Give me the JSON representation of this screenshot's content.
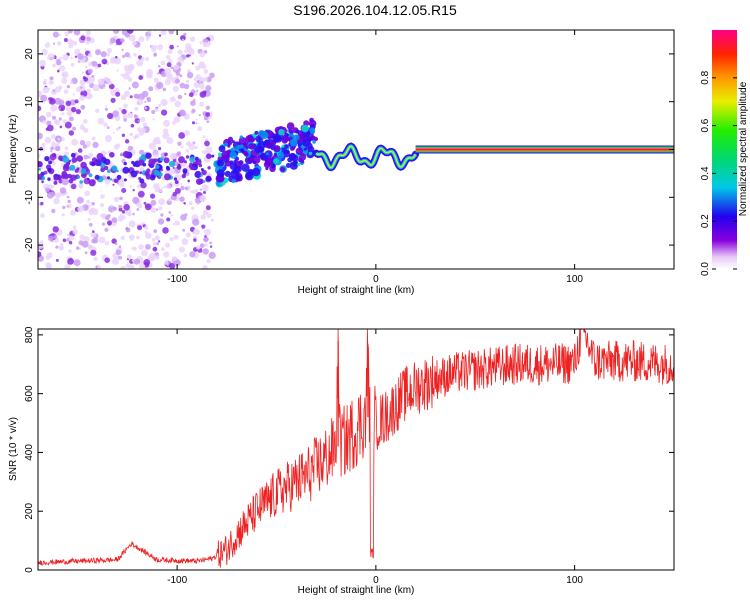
{
  "title": "S196.2026.104.12.05.R15",
  "colors": {
    "snr_line": "#ee2222",
    "axis": "#000000",
    "background": "#ffffff"
  },
  "chart_data": [
    {
      "type": "heatmap",
      "title": "S196.2026.104.12.05.R15",
      "xlabel": "Height of straight line (km)",
      "ylabel": "Frequency (Hz)",
      "xlim": [
        -170,
        150
      ],
      "ylim": [
        -25,
        25
      ],
      "xticks": [
        -100,
        0,
        100
      ],
      "xtick_labels": [
        "-100",
        "0",
        "100"
      ],
      "yticks": [
        -20,
        -10,
        0,
        10,
        20
      ],
      "ytick_labels": [
        "-20",
        "-10",
        "0",
        "10",
        "20"
      ],
      "description_of_features": {
        "noise_region_x": [
          -170,
          -82
        ],
        "blob_region_x": [
          -80,
          -30
        ],
        "transition_region_x": [
          -30,
          20
        ],
        "steady_carrier_x": [
          20,
          150
        ],
        "steady_carrier_freq_hz": 0
      },
      "colorbar": {
        "label": "Normalized spectral amplitude",
        "range": [
          0,
          1
        ],
        "ticks": [
          0,
          0.2,
          0.4,
          0.6,
          0.8
        ],
        "tick_labels": [
          "0.0",
          "0.2",
          "0.4",
          "0.6",
          "0.8"
        ]
      }
    },
    {
      "type": "line",
      "xlabel": "Height of straight line (km)",
      "ylabel": "SNR (10 * v/v)",
      "xlim": [
        -170,
        150
      ],
      "ylim": [
        0,
        820
      ],
      "xticks": [
        -100,
        0,
        100
      ],
      "xtick_labels": [
        "-100",
        "0",
        "100"
      ],
      "yticks": [
        0,
        200,
        400,
        600,
        800
      ],
      "ytick_labels": [
        "0",
        "200",
        "400",
        "600",
        "800"
      ],
      "series": [
        {
          "name": "SNR",
          "x": [
            -170,
            -150,
            -130,
            -123,
            -110,
            -90,
            -82,
            -75,
            -70,
            -65,
            -60,
            -55,
            -50,
            -45,
            -40,
            -35,
            -30,
            -25,
            -20,
            -19,
            -18,
            -15,
            -10,
            -5,
            -4,
            -3,
            0,
            5,
            10,
            15,
            20,
            30,
            40,
            50,
            60,
            70,
            80,
            90,
            100,
            104,
            110,
            120,
            130,
            140,
            150
          ],
          "values": [
            25,
            30,
            35,
            90,
            35,
            30,
            40,
            70,
            120,
            160,
            200,
            230,
            260,
            280,
            300,
            320,
            350,
            380,
            420,
            780,
            430,
            440,
            480,
            520,
            770,
            500,
            500,
            520,
            560,
            600,
            620,
            650,
            670,
            680,
            690,
            700,
            700,
            700,
            705,
            820,
            710,
            710,
            710,
            705,
            700
          ]
        }
      ]
    }
  ]
}
